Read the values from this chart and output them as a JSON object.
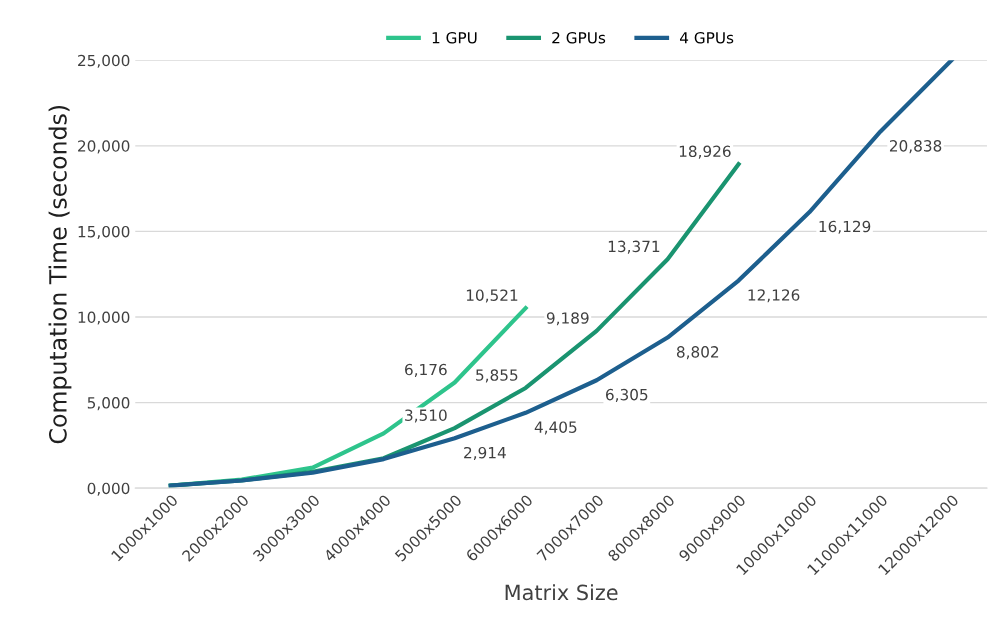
{
  "chart_data": {
    "type": "line",
    "xlabel": "Matrix Size",
    "ylabel": "Computation Time (seconds)",
    "categories": [
      "1000x1000",
      "2000x2000",
      "3000x3000",
      "4000x4000",
      "5000x5000",
      "6000x6000",
      "7000x7000",
      "8000x8000",
      "9000x9000",
      "10000x10000",
      "11000x11000",
      "12000x12000"
    ],
    "series": [
      {
        "name": "1 GPU",
        "color": "#2ec48c",
        "values": [
          150,
          500,
          1200,
          3200,
          6176,
          10521,
          null,
          null,
          null,
          null,
          null,
          null
        ],
        "value_labels": [
          null,
          null,
          null,
          null,
          "6,176",
          "10,521",
          null,
          null,
          null,
          null,
          null,
          null
        ]
      },
      {
        "name": "2 GPUs",
        "color": "#1a9470",
        "values": [
          150,
          450,
          950,
          1750,
          3510,
          5855,
          9189,
          13371,
          18926,
          null,
          null,
          null
        ],
        "value_labels": [
          null,
          null,
          null,
          null,
          "3,510",
          "5,855",
          "9,189",
          "13,371",
          "18,926",
          null,
          null,
          null
        ]
      },
      {
        "name": "4 GPUs",
        "color": "#1d5f8e",
        "values": [
          150,
          450,
          900,
          1700,
          2914,
          4405,
          6305,
          8802,
          12126,
          16129,
          20838,
          25000
        ],
        "value_labels": [
          null,
          null,
          null,
          null,
          "2,914",
          "4,405",
          "6,305",
          "8,802",
          "12,126",
          "16,129",
          "20,838",
          null
        ]
      }
    ],
    "ylim": [
      0,
      25000
    ],
    "yticks": [
      {
        "value": 0,
        "label": "0,000"
      },
      {
        "value": 5000,
        "label": "5,000"
      },
      {
        "value": 10000,
        "label": "10,000"
      },
      {
        "value": 15000,
        "label": "15,000"
      },
      {
        "value": 20000,
        "label": "20,000"
      },
      {
        "value": 25000,
        "label": "25,000"
      }
    ],
    "grid": "y",
    "legend": "top",
    "line_style": "solid",
    "marker": "none"
  }
}
